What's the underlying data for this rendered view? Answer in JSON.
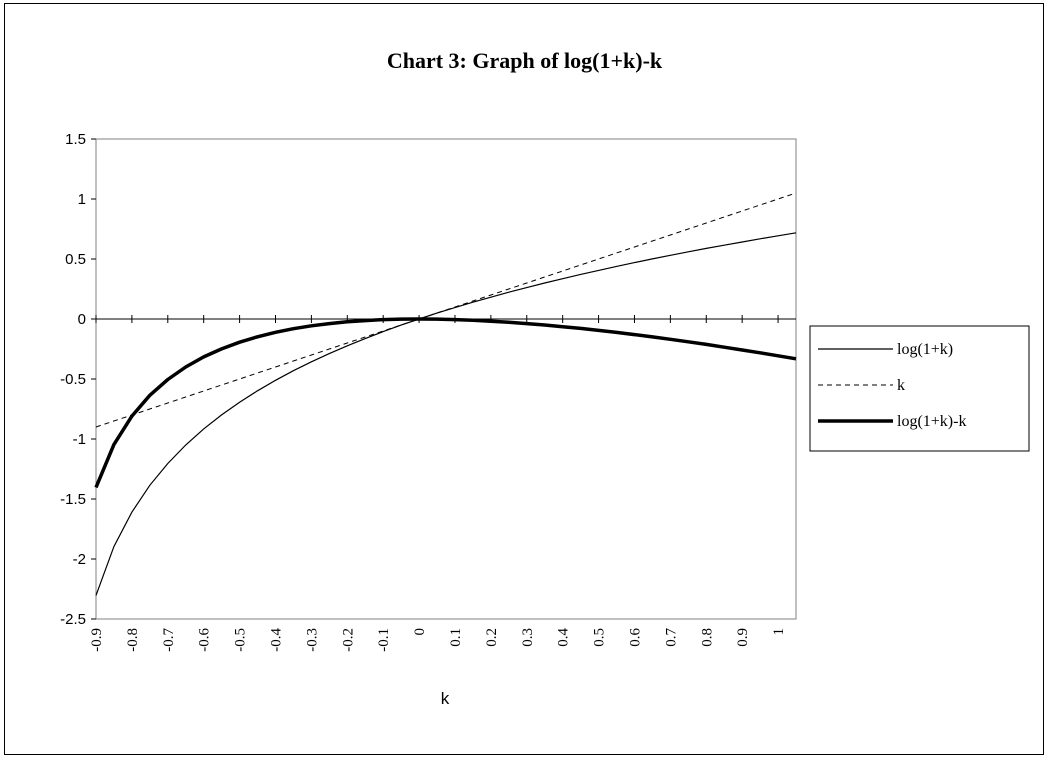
{
  "chart_data": {
    "type": "line",
    "title": "Chart 3: Graph of log(1+k)-k",
    "xlabel": "k",
    "ylabel": "",
    "ylim": [
      -2.5,
      1.5
    ],
    "yticks": [
      1.5,
      1,
      0.5,
      0,
      -0.5,
      -1,
      -1.5,
      -2,
      -2.5
    ],
    "xticks": [
      -0.9,
      -0.8,
      -0.7,
      -0.6,
      -0.5,
      -0.4,
      -0.3,
      -0.2,
      -0.1,
      0,
      0.1,
      0.2,
      0.3,
      0.4,
      0.5,
      0.6,
      0.7,
      0.8,
      0.9,
      1
    ],
    "x": [
      -0.9,
      -0.85,
      -0.8,
      -0.75,
      -0.7,
      -0.65,
      -0.6,
      -0.55,
      -0.5,
      -0.45,
      -0.4,
      -0.35,
      -0.3,
      -0.25,
      -0.2,
      -0.15,
      -0.1,
      -0.05,
      0,
      0.05,
      0.1,
      0.15,
      0.2,
      0.25,
      0.3,
      0.35,
      0.4,
      0.45,
      0.5,
      0.55,
      0.6,
      0.65,
      0.7,
      0.75,
      0.8,
      0.85,
      0.9,
      0.95,
      1,
      1.05
    ],
    "series": [
      {
        "name": "log(1+k)",
        "style": "thin",
        "values": [
          -2.303,
          -1.897,
          -1.609,
          -1.386,
          -1.204,
          -1.05,
          -0.916,
          -0.799,
          -0.693,
          -0.598,
          -0.511,
          -0.431,
          -0.357,
          -0.288,
          -0.223,
          -0.163,
          -0.105,
          -0.051,
          0,
          0.049,
          0.095,
          0.14,
          0.182,
          0.223,
          0.262,
          0.3,
          0.336,
          0.372,
          0.405,
          0.438,
          0.47,
          0.501,
          0.531,
          0.56,
          0.588,
          0.615,
          0.642,
          0.668,
          0.693,
          0.718
        ]
      },
      {
        "name": "k",
        "style": "dashed",
        "values": [
          -0.9,
          -0.85,
          -0.8,
          -0.75,
          -0.7,
          -0.65,
          -0.6,
          -0.55,
          -0.5,
          -0.45,
          -0.4,
          -0.35,
          -0.3,
          -0.25,
          -0.2,
          -0.15,
          -0.1,
          -0.05,
          0,
          0.05,
          0.1,
          0.15,
          0.2,
          0.25,
          0.3,
          0.35,
          0.4,
          0.45,
          0.5,
          0.55,
          0.6,
          0.65,
          0.7,
          0.75,
          0.8,
          0.85,
          0.9,
          0.95,
          1,
          1.05
        ]
      },
      {
        "name": "log(1+k)-k",
        "style": "thick",
        "values": [
          -1.403,
          -1.047,
          -0.809,
          -0.636,
          -0.504,
          -0.4,
          -0.316,
          -0.249,
          -0.193,
          -0.148,
          -0.111,
          -0.081,
          -0.057,
          -0.038,
          -0.023,
          -0.013,
          -0.005,
          -0.001,
          0,
          -0.001,
          -0.005,
          -0.01,
          -0.018,
          -0.027,
          -0.038,
          -0.05,
          -0.064,
          -0.078,
          -0.095,
          -0.112,
          -0.13,
          -0.149,
          -0.169,
          -0.19,
          -0.212,
          -0.235,
          -0.258,
          -0.282,
          -0.307,
          -0.332
        ]
      }
    ],
    "legend": "right",
    "grid": false
  }
}
